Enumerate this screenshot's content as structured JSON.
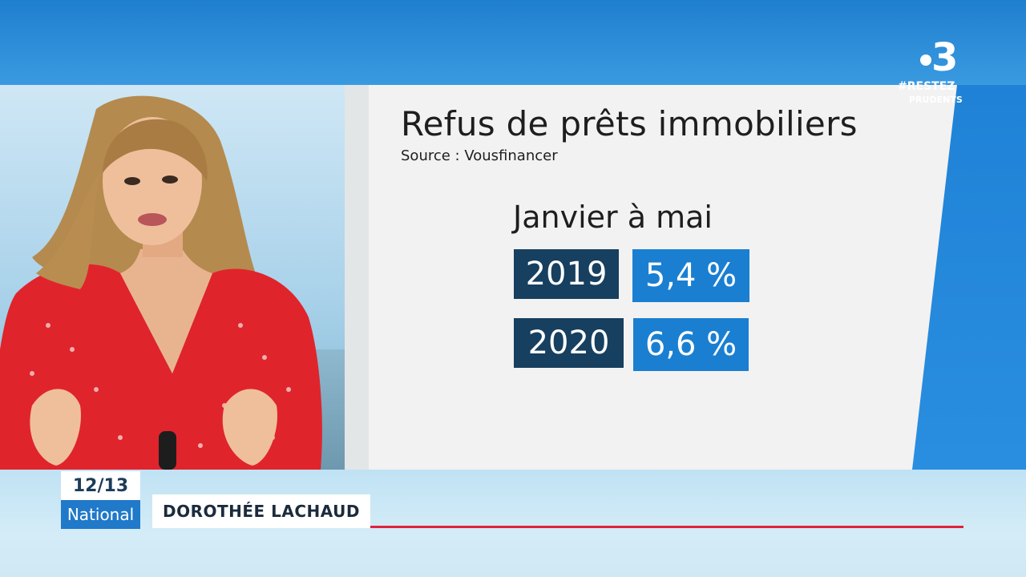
{
  "graphic": {
    "title": "Refus de prêts immobiliers",
    "source": "Source : Vousfinancer",
    "period": "Janvier à mai",
    "rows": [
      {
        "year": "2019",
        "value": "5,4 %"
      },
      {
        "year": "2020",
        "value": "6,6 %"
      }
    ]
  },
  "logo": {
    "number": "3",
    "tag_line1": "#RESTEZ",
    "tag_line2": "PRUDENTS"
  },
  "lower_third": {
    "time": "12/13",
    "edition": "National",
    "name": "DOROTHÉE LACHAUD"
  },
  "colors": {
    "year_box": "#173f5f",
    "value_box": "#1a7fd1",
    "accent_line": "#e0223c",
    "background_blue": "#2f8fd8"
  }
}
